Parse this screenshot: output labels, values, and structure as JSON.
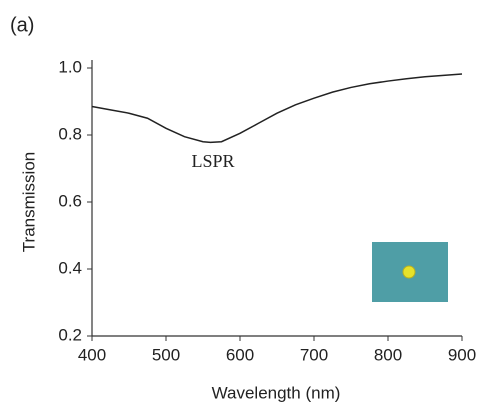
{
  "chart_data": {
    "type": "line",
    "panel_label": "(a)",
    "annotation": "LSPR",
    "x_label": "Wavelength (nm)",
    "y_label": "Transmission",
    "x": [
      400,
      425,
      450,
      475,
      500,
      525,
      550,
      560,
      575,
      600,
      625,
      650,
      675,
      700,
      725,
      750,
      775,
      800,
      825,
      850,
      875,
      900
    ],
    "series": [
      {
        "color": "#222222",
        "values": [
          0.885,
          0.875,
          0.865,
          0.85,
          0.82,
          0.795,
          0.78,
          0.778,
          0.78,
          0.805,
          0.835,
          0.865,
          0.89,
          0.91,
          0.928,
          0.942,
          0.953,
          0.961,
          0.968,
          0.974,
          0.978,
          0.982
        ]
      }
    ],
    "xlim": [
      400,
      900
    ],
    "xticks": [
      400,
      500,
      600,
      700,
      800,
      900
    ],
    "ylim": [
      0.2,
      1.0
    ],
    "yticks": [
      0.2,
      0.4,
      0.6,
      0.8,
      {
        "value": 1.0,
        "label": "1.0"
      }
    ],
    "grid": false
  }
}
